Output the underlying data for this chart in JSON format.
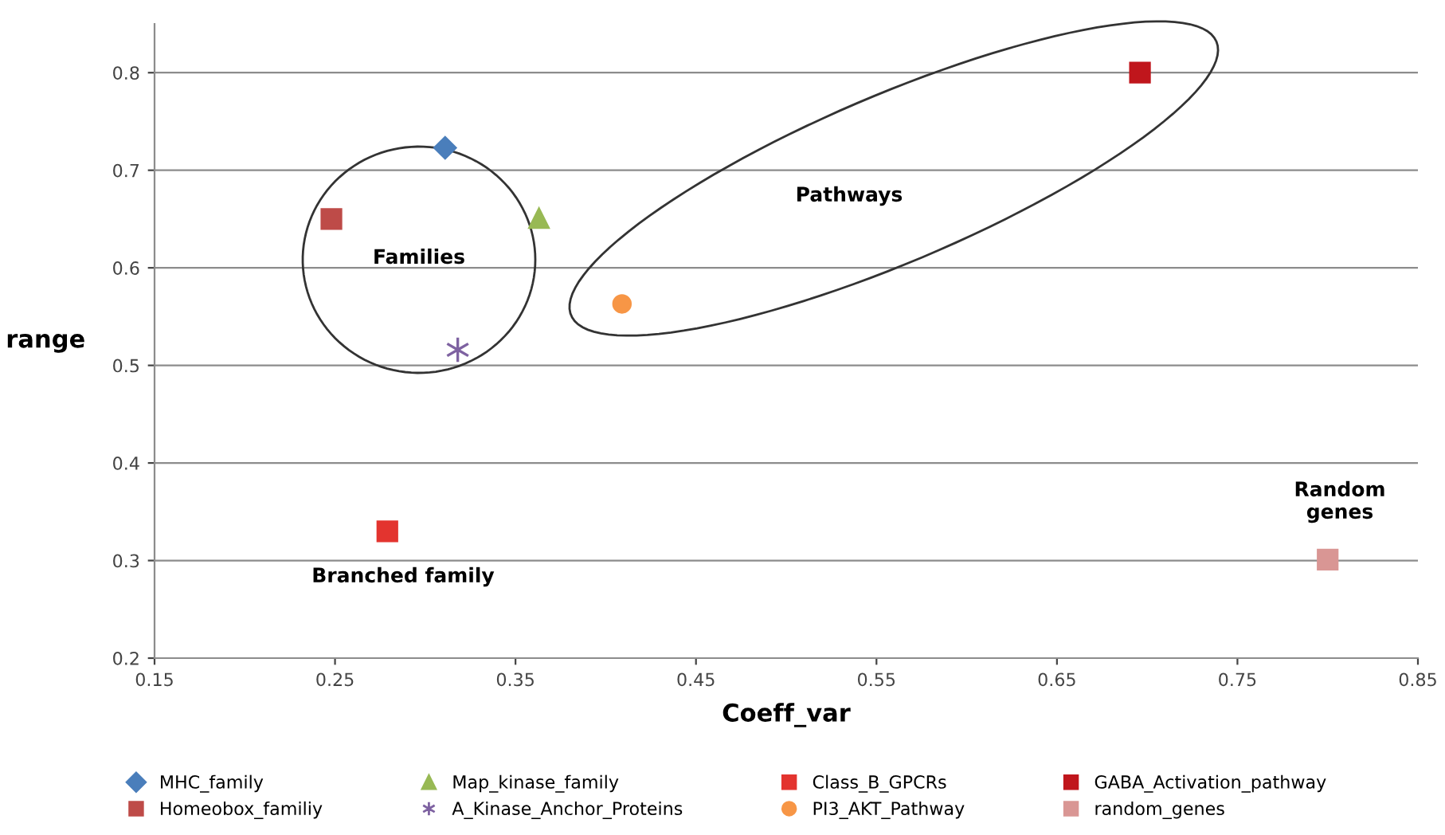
{
  "chart_data": {
    "type": "scatter",
    "xlabel": "Coeff_var",
    "ylabel": "range",
    "xlim": [
      0.15,
      0.85
    ],
    "xticks": [
      0.15,
      0.25,
      0.35,
      0.45,
      0.55,
      0.65,
      0.75,
      0.85
    ],
    "ylim": [
      0.2,
      0.85
    ],
    "yticks": [
      0.2,
      0.3,
      0.4,
      0.5,
      0.6,
      0.7,
      0.8
    ],
    "grid": "y",
    "legend": "bottom",
    "series": [
      {
        "name": "MHC_family",
        "color": "#4a7ebb",
        "marker": "diamond",
        "x": [
          0.311
        ],
        "values": [
          0.723
        ]
      },
      {
        "name": "Homeobox_familiy",
        "color": "#be4b48",
        "marker": "square",
        "x": [
          0.248
        ],
        "values": [
          0.65
        ]
      },
      {
        "name": "Map_kinase_family",
        "color": "#98b954",
        "marker": "triangle",
        "x": [
          0.363
        ],
        "values": [
          0.651
        ]
      },
      {
        "name": "A_Kinase_Anchor_Proteins",
        "color": "#7e62a1",
        "marker": "cross",
        "x": [
          0.318
        ],
        "values": [
          0.516
        ]
      },
      {
        "name": "Class_B_GPCRs",
        "color": "#e3342f",
        "marker": "square",
        "x": [
          0.279
        ],
        "values": [
          0.33
        ]
      },
      {
        "name": "PI3_AKT_Pathway",
        "color": "#f79646",
        "marker": "circle",
        "x": [
          0.409
        ],
        "values": [
          0.563
        ]
      },
      {
        "name": "GABA_Activation_pathway",
        "color": "#c0161c",
        "marker": "square",
        "x": [
          0.696
        ],
        "values": [
          0.8
        ]
      },
      {
        "name": "random_genes",
        "color": "#d99694",
        "marker": "square",
        "x": [
          0.8
        ],
        "values": [
          0.301
        ]
      }
    ],
    "annotations": [
      "Families",
      "Pathways",
      "Branched family",
      "Random\ngenes"
    ]
  }
}
